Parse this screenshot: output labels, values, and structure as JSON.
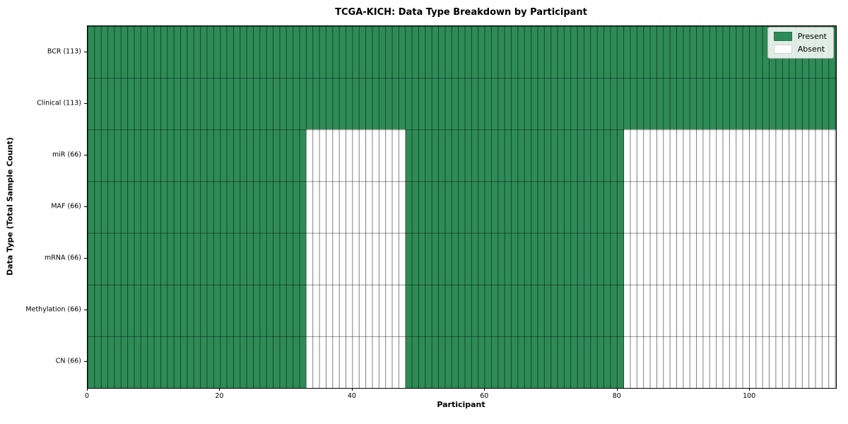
{
  "title": "TCGA-KICH: Data Type Breakdown by Participant",
  "chart_data": {
    "type": "heatmap",
    "title": "TCGA-KICH: Data Type Breakdown by Participant",
    "xlabel": "Participant",
    "ylabel": "Data Type (Total Sample Count)",
    "x_range": [
      0,
      113
    ],
    "x_ticks": [
      0,
      20,
      40,
      60,
      80,
      100
    ],
    "n_participants": 113,
    "grid": true,
    "legend_position": "upper right",
    "rows": [
      {
        "data_type": "BCR",
        "label": "BCR (113)",
        "total_sample_count": 113,
        "present_runs": [
          [
            0,
            113
          ]
        ]
      },
      {
        "data_type": "Clinical",
        "label": "Clinical (113)",
        "total_sample_count": 113,
        "present_runs": [
          [
            0,
            113
          ]
        ]
      },
      {
        "data_type": "miR",
        "label": "miR (66)",
        "total_sample_count": 66,
        "present_runs": [
          [
            0,
            33
          ],
          [
            48,
            81
          ]
        ]
      },
      {
        "data_type": "MAF",
        "label": "MAF (66)",
        "total_sample_count": 66,
        "present_runs": [
          [
            0,
            33
          ],
          [
            48,
            81
          ]
        ]
      },
      {
        "data_type": "mRNA",
        "label": "mRNA (66)",
        "total_sample_count": 66,
        "present_runs": [
          [
            0,
            33
          ],
          [
            48,
            81
          ]
        ]
      },
      {
        "data_type": "Methylation",
        "label": "Methylation (66)",
        "total_sample_count": 66,
        "present_runs": [
          [
            0,
            33
          ],
          [
            48,
            81
          ]
        ]
      },
      {
        "data_type": "CN",
        "label": "CN (66)",
        "total_sample_count": 66,
        "present_runs": [
          [
            0,
            33
          ],
          [
            48,
            81
          ]
        ]
      }
    ],
    "legend": [
      {
        "label": "Present",
        "color": "#2e8b57"
      },
      {
        "label": "Absent",
        "color": "#ffffff"
      }
    ],
    "colors": {
      "present": "#2e8b57",
      "absent": "#ffffff",
      "grid_line": "rgba(0,0,0,0.5)",
      "spine": "#000000"
    }
  }
}
